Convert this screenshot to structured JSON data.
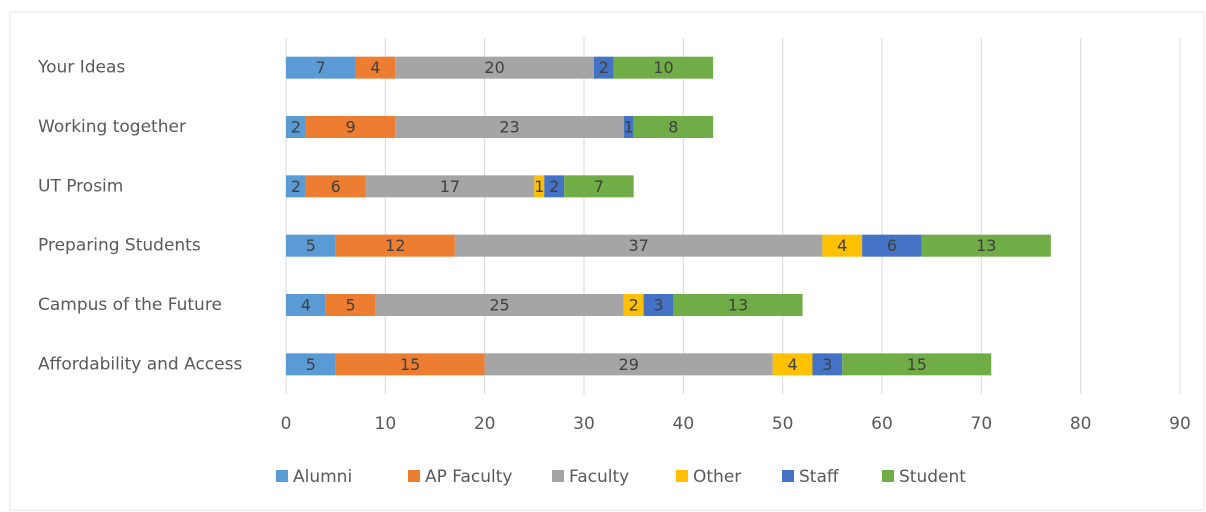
{
  "chart_data": {
    "type": "stacked_bar",
    "orientation": "horizontal",
    "categories": [
      "Your Ideas",
      "Working together",
      "UT Prosim",
      "Preparing Students",
      "Campus of the Future",
      "Affordability and Access"
    ],
    "series": [
      {
        "name": "Alumni",
        "color": "#5b9bd5",
        "values": [
          7,
          2,
          2,
          5,
          4,
          5
        ]
      },
      {
        "name": "AP Faculty",
        "color": "#ed7d31",
        "values": [
          4,
          9,
          6,
          12,
          5,
          15
        ]
      },
      {
        "name": "Faculty",
        "color": "#a5a5a5",
        "values": [
          20,
          23,
          17,
          37,
          25,
          29
        ]
      },
      {
        "name": "Other",
        "color": "#ffc000",
        "values": [
          null,
          null,
          1,
          4,
          2,
          4
        ]
      },
      {
        "name": "Staff",
        "color": "#4472c4",
        "values": [
          2,
          1,
          2,
          6,
          3,
          3
        ]
      },
      {
        "name": "Student",
        "color": "#70ad47",
        "values": [
          10,
          8,
          7,
          13,
          13,
          15
        ]
      }
    ],
    "xlim": [
      0,
      90
    ],
    "xticks": [
      0,
      10,
      20,
      30,
      40,
      50,
      60,
      70,
      80,
      90
    ],
    "grid": true,
    "legend": "bottom"
  }
}
